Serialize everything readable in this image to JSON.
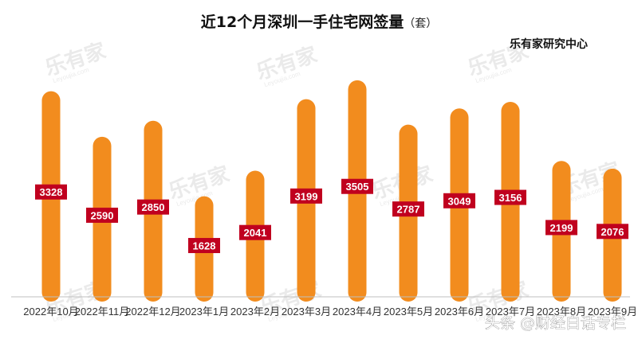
{
  "chart_data": {
    "type": "bar",
    "title": "近12个月深圳一手住宅网签量",
    "title_unit": "（套）",
    "source": "乐有家研究中心",
    "categories": [
      "2022年10月",
      "2022年11月",
      "2022年12月",
      "2023年1月",
      "2023年2月",
      "2023年3月",
      "2023年4月",
      "2023年5月",
      "2023年6月",
      "2023年7月",
      "2023年8月",
      "2023年9月"
    ],
    "values": [
      3328,
      2590,
      2850,
      1628,
      2041,
      3199,
      3505,
      2787,
      3049,
      3156,
      2199,
      2076
    ],
    "ylim": [
      0,
      3800
    ],
    "grid": false,
    "legend": "none",
    "bar_color": "#F28C1E",
    "label_bg": "#C0001F",
    "axis_color": "#BFBFBF"
  },
  "watermark": {
    "logo_text": "乐有家",
    "sub_text": "Leyoujia.com",
    "color": "#d9d9d9"
  },
  "credit": "头条 @财经白话专栏"
}
